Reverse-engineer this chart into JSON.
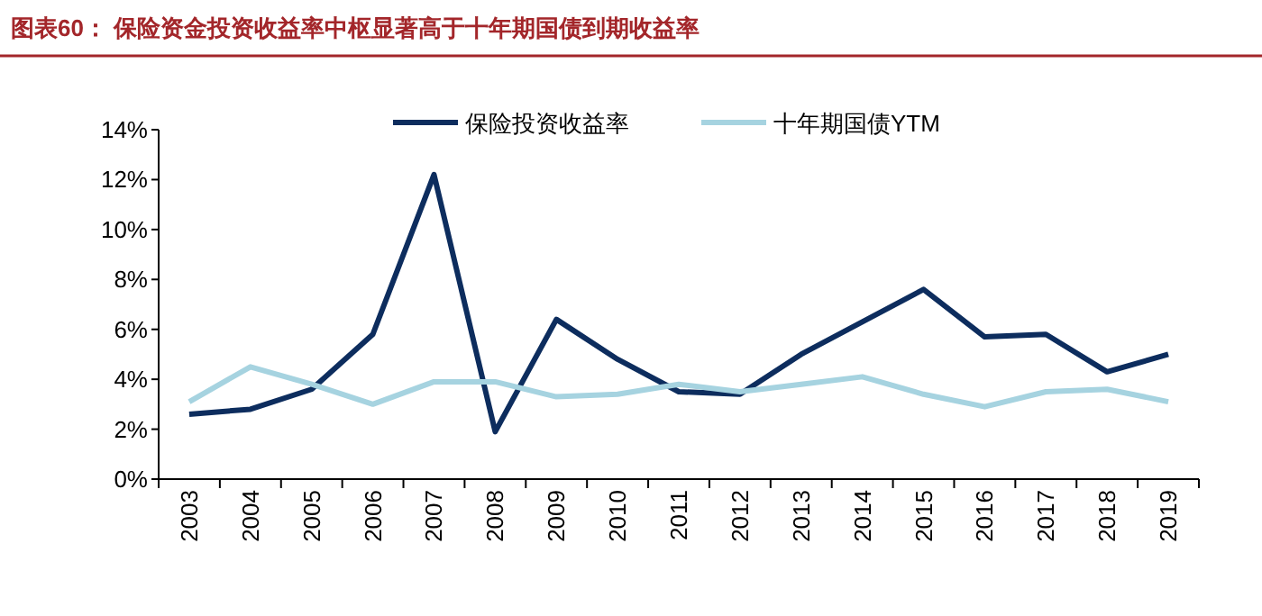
{
  "chart_data": {
    "type": "line",
    "title": "图表60：  保险资金投资收益率中枢显著高于十年期国债到期收益率",
    "categories": [
      "2003",
      "2004",
      "2005",
      "2006",
      "2007",
      "2008",
      "2009",
      "2010",
      "2011",
      "2012",
      "2013",
      "2014",
      "2015",
      "2016",
      "2017",
      "2018",
      "2019"
    ],
    "series": [
      {
        "name": "保险投资收益率",
        "color": "#0d2d5e",
        "values": [
          2.6,
          2.8,
          3.6,
          5.8,
          12.2,
          1.9,
          6.4,
          4.8,
          3.5,
          3.4,
          5.0,
          6.3,
          7.6,
          5.7,
          5.8,
          4.3,
          5.0
        ]
      },
      {
        "name": "十年期国债YTM",
        "color": "#a6d3e0",
        "values": [
          3.1,
          4.5,
          3.8,
          3.0,
          3.9,
          3.9,
          3.3,
          3.4,
          3.8,
          3.5,
          3.8,
          4.1,
          3.4,
          2.9,
          3.5,
          3.6,
          3.1
        ]
      }
    ],
    "ylim": [
      0,
      14
    ],
    "yticks": [
      {
        "value": 0,
        "label": "0%"
      },
      {
        "value": 2,
        "label": "2%"
      },
      {
        "value": 4,
        "label": "4%"
      },
      {
        "value": 6,
        "label": "6%"
      },
      {
        "value": 8,
        "label": "8%"
      },
      {
        "value": 10,
        "label": "10%"
      },
      {
        "value": 12,
        "label": "12%"
      },
      {
        "value": 14,
        "label": "14%"
      }
    ],
    "grid": false,
    "legend": "top",
    "marker": "none",
    "line_style": "solid"
  }
}
